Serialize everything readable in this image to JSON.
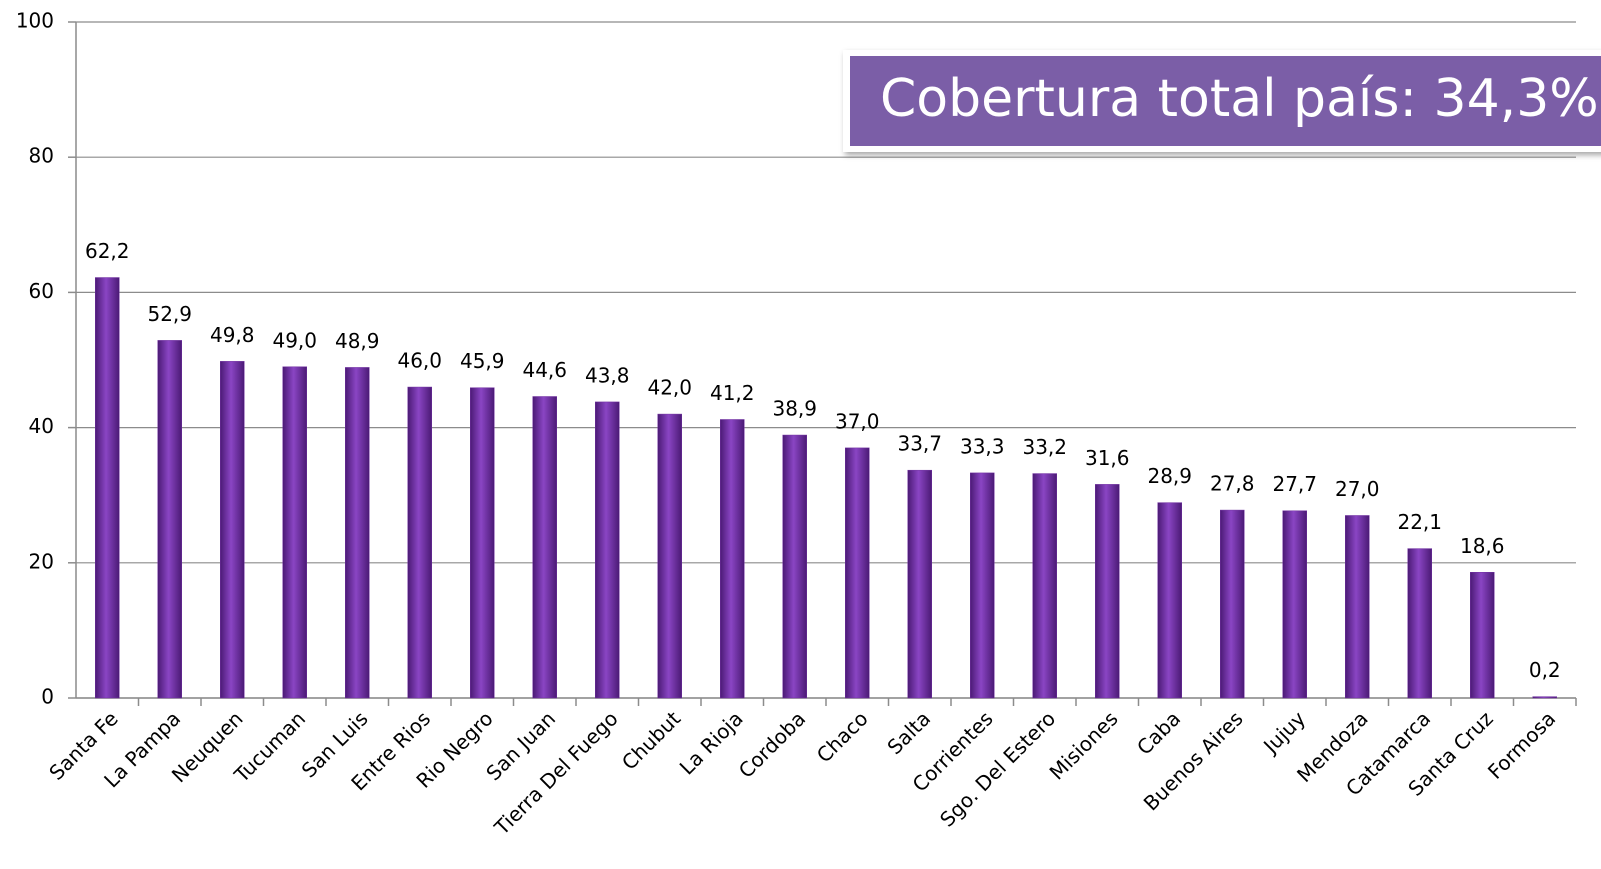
{
  "chart_data": {
    "type": "bar",
    "annotation": "Cobertura total país: 34,3%",
    "categories": [
      "Santa Fe",
      "La Pampa",
      "Neuquen",
      "Tucuman",
      "San Luis",
      "Entre Rios",
      "Rio Negro",
      "San Juan",
      "Tierra Del Fuego",
      "Chubut",
      "La Rioja",
      "Cordoba",
      "Chaco",
      "Salta",
      "Corrientes",
      "Sgo. Del Estero",
      "Misiones",
      "Caba",
      "Buenos Aires",
      "Jujuy",
      "Mendoza",
      "Catamarca",
      "Santa Cruz",
      "Formosa"
    ],
    "values": [
      62.2,
      52.9,
      49.8,
      49.0,
      48.9,
      46.0,
      45.9,
      44.6,
      43.8,
      42.0,
      41.2,
      38.9,
      37.0,
      33.7,
      33.3,
      33.2,
      31.6,
      28.9,
      27.8,
      27.7,
      27.0,
      22.1,
      18.6,
      0.2
    ],
    "value_labels": [
      "62,2",
      "52,9",
      "49,8",
      "49,0",
      "48,9",
      "46,0",
      "45,9",
      "44,6",
      "43,8",
      "42,0",
      "41,2",
      "38,9",
      "37,0",
      "33,7",
      "33,3",
      "33,2",
      "31,6",
      "28,9",
      "27,8",
      "27,7",
      "27,0",
      "22,1",
      "18,6",
      "0,2"
    ],
    "color": "#7030a0",
    "ylim": [
      0,
      100
    ],
    "yticks": [
      0,
      20,
      40,
      60,
      80,
      100
    ],
    "grid": true
  }
}
